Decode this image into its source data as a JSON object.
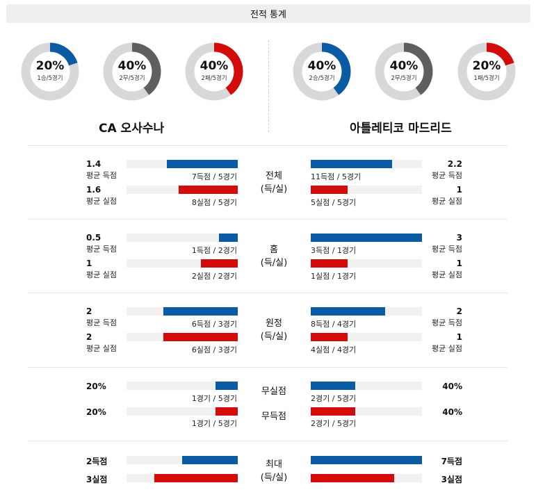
{
  "header": {
    "title": "전적 통계"
  },
  "colors": {
    "blue": "#0b5ba4",
    "red": "#d30b0b",
    "gray": "#5f5f5f",
    "track": "#d8d8d8",
    "bar_track": "#f1f1f1"
  },
  "donuts": {
    "left": [
      {
        "pct": "20%",
        "record": "1승/5경기",
        "value": 0.2,
        "color": "blue"
      },
      {
        "pct": "40%",
        "record": "2무/5경기",
        "value": 0.4,
        "color": "gray"
      },
      {
        "pct": "40%",
        "record": "2패/5경기",
        "value": 0.4,
        "color": "red"
      }
    ],
    "right": [
      {
        "pct": "40%",
        "record": "2승/5경기",
        "value": 0.4,
        "color": "blue"
      },
      {
        "pct": "40%",
        "record": "2무/5경기",
        "value": 0.4,
        "color": "gray"
      },
      {
        "pct": "20%",
        "record": "1패/5경기",
        "value": 0.2,
        "color": "red"
      }
    ]
  },
  "teams": {
    "left": "CA 오사수나",
    "right": "아틀레티코 마드리드"
  },
  "sections": {
    "total": {
      "title": "전체",
      "sub": "(득/실)",
      "left": {
        "scored": {
          "value": "1.4",
          "label": "평균 득점",
          "caption": "7득점 / 5경기",
          "fill": 0.636
        },
        "conceded": {
          "value": "1.6",
          "label": "평균 실점",
          "caption": "8실점 / 5경기",
          "fill": 0.533
        }
      },
      "right": {
        "scored": {
          "value": "2.2",
          "label": "평균 득점",
          "caption": "11득점 / 5경기",
          "fill": 0.733
        },
        "conceded": {
          "value": "1",
          "label": "평균 실점",
          "caption": "5실점 / 5경기",
          "fill": 0.333
        }
      }
    },
    "home": {
      "title": "홈",
      "sub": "(득/실)",
      "left": {
        "scored": {
          "value": "0.5",
          "label": "평균 득점",
          "caption": "1득점 / 2경기",
          "fill": 0.167
        },
        "conceded": {
          "value": "1",
          "label": "평균 실점",
          "caption": "2실점 / 2경기",
          "fill": 0.333
        }
      },
      "right": {
        "scored": {
          "value": "3",
          "label": "평균 득점",
          "caption": "3득점 / 1경기",
          "fill": 1.0
        },
        "conceded": {
          "value": "1",
          "label": "평균 실점",
          "caption": "1실점 / 1경기",
          "fill": 0.333
        }
      }
    },
    "away": {
      "title": "원정",
      "sub": "(득/실)",
      "left": {
        "scored": {
          "value": "2",
          "label": "평균 득점",
          "caption": "6득점 / 3경기",
          "fill": 0.667
        },
        "conceded": {
          "value": "2",
          "label": "평균 실점",
          "caption": "6실점 / 3경기",
          "fill": 0.667
        }
      },
      "right": {
        "scored": {
          "value": "2",
          "label": "평균 득점",
          "caption": "8득점 / 4경기",
          "fill": 0.667
        },
        "conceded": {
          "value": "1",
          "label": "평균 실점",
          "caption": "4실점 / 4경기",
          "fill": 0.333
        }
      }
    },
    "clean": {
      "title_top": "무실점",
      "title_bottom": "무득점",
      "left": {
        "clean_sheet": {
          "value": "20%",
          "caption": "1경기 / 5경기",
          "fill": 0.2
        },
        "no_score": {
          "value": "20%",
          "caption": "1경기 / 5경기",
          "fill": 0.2
        }
      },
      "right": {
        "clean_sheet": {
          "value": "40%",
          "caption": "2경기 / 5경기",
          "fill": 0.4
        },
        "no_score": {
          "value": "40%",
          "caption": "2경기 / 5경기",
          "fill": 0.4
        }
      }
    },
    "max": {
      "title": "최대",
      "sub": "(득/실)",
      "left": {
        "scored": {
          "value": "2득점",
          "fill": 0.5
        },
        "conceded": {
          "value": "3실점",
          "fill": 0.75
        }
      },
      "right": {
        "scored": {
          "value": "7득점",
          "fill": 1.0
        },
        "conceded": {
          "value": "3실점",
          "fill": 0.75
        }
      }
    }
  }
}
